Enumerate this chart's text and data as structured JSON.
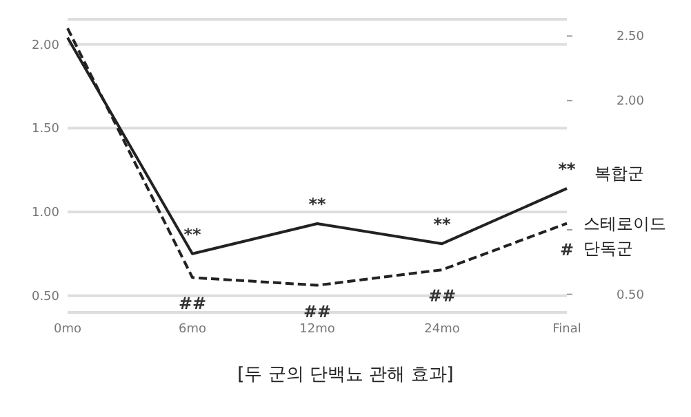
{
  "chart_data": {
    "type": "line",
    "title": "[두 군의 단백뇨 관해 효과]",
    "categories": [
      "0mo",
      "6mo",
      "12mo",
      "24mo",
      "Final"
    ],
    "series": [
      {
        "name": "복합군",
        "color": "#222222",
        "line_style": "solid",
        "values": [
          2.04,
          0.75,
          0.93,
          0.81,
          1.14
        ],
        "value_labels": [
          null,
          "**",
          "**",
          "**",
          "**"
        ]
      },
      {
        "name": "스테로이드 단독군",
        "color": "#222222",
        "line_style": "dashed",
        "axis": "y2",
        "values": [
          2.56,
          0.63,
          0.57,
          0.69,
          1.05
        ],
        "value_labels": [
          null,
          "##",
          "##",
          "##",
          "#"
        ]
      }
    ],
    "ylim": [
      0.4,
      2.15
    ],
    "yticks": [
      {
        "value": 0.5,
        "label": "0.50"
      },
      {
        "value": 1,
        "label": "1.00"
      },
      {
        "value": 1.5,
        "label": "1.50"
      },
      {
        "value": 2,
        "label": "2.00"
      }
    ],
    "y2lim": [
      0.36,
      2.63
    ],
    "y2ticks": [
      {
        "value": 0.5,
        "label": "0.50"
      },
      {
        "value": 1,
        "label": null
      },
      {
        "value": 1.5,
        "label": null
      },
      {
        "value": 2,
        "label": "2.00"
      },
      {
        "value": 2.5,
        "label": "2.50"
      }
    ],
    "grid": "y",
    "legend": false,
    "marker": "none"
  }
}
